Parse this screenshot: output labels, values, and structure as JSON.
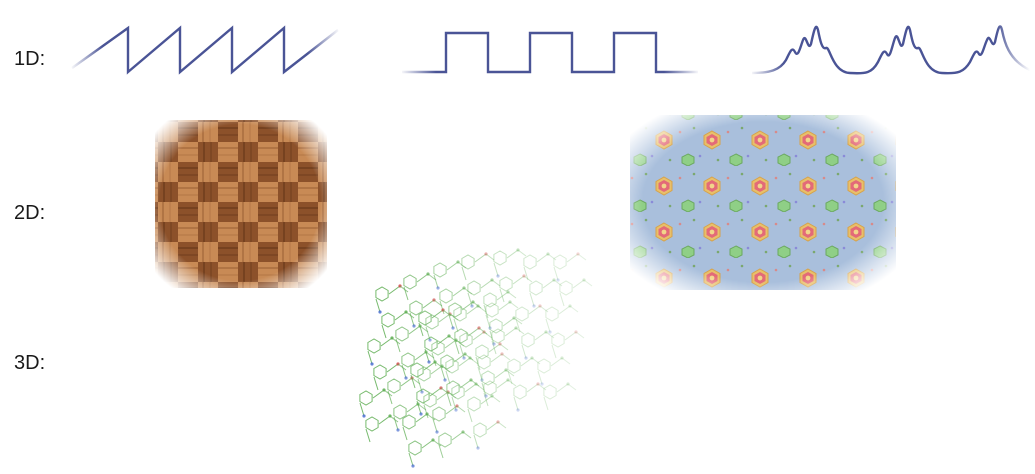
{
  "labels": {
    "one_d": "1D:",
    "two_d": "2D:",
    "three_d": "3D:"
  },
  "colors": {
    "wave": "#4a5496",
    "wood_light": "#c98a55",
    "wood_dark": "#8a4f27",
    "crystal_bg": "#9fb5d6",
    "hex_outer": "#e0b35a",
    "hex_inner": "#d9556b",
    "molecule_green": "#5fae54",
    "molecule_red": "#d24b4b",
    "molecule_blue": "#4b6fd2"
  },
  "icons": {
    "sawtooth": "sawtooth-wave-icon",
    "square": "square-wave-icon",
    "peaks": "multi-peak-wave-icon",
    "weave": "checkerboard-weave-icon",
    "crystal": "hexagonal-pattern-icon",
    "lattice": "molecular-lattice-icon"
  }
}
